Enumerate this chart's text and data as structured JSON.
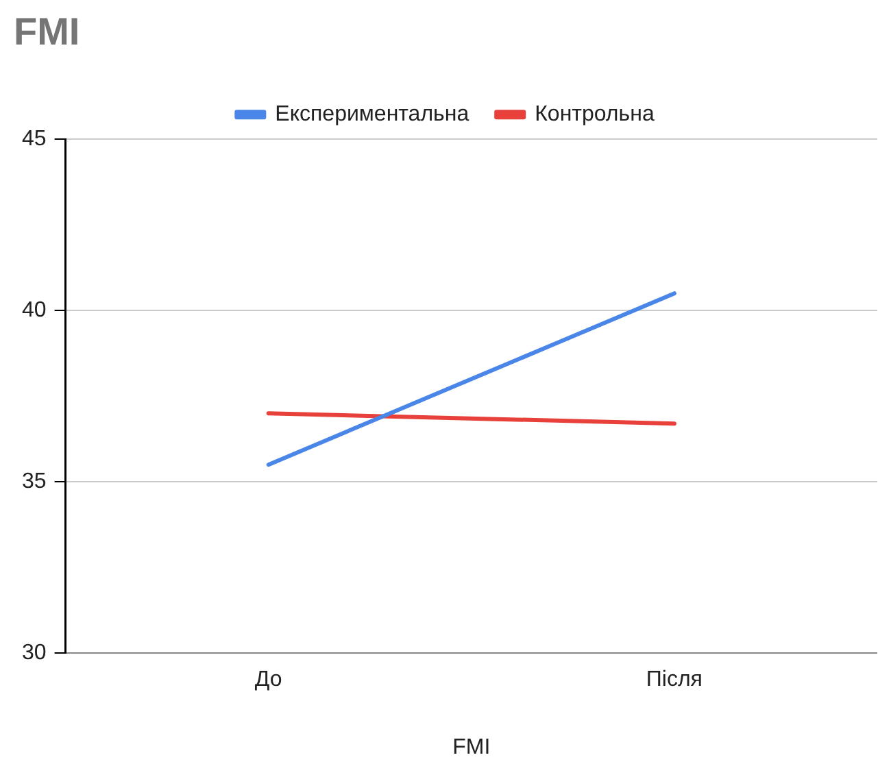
{
  "chart_data": {
    "type": "line",
    "title": "FMI",
    "xlabel": "FMI",
    "categories": [
      "До",
      "Після"
    ],
    "series": [
      {
        "name": "Експериментальна",
        "color": "#4a86e8",
        "values": [
          35.5,
          40.5
        ]
      },
      {
        "name": "Контрольна",
        "color": "#e8403a",
        "values": [
          37,
          36.7
        ]
      }
    ],
    "ylim": [
      30,
      45
    ],
    "yticks": [
      30,
      35,
      40,
      45
    ],
    "grid": "y",
    "legend": "top",
    "marker": "none",
    "line_style": "solid"
  }
}
